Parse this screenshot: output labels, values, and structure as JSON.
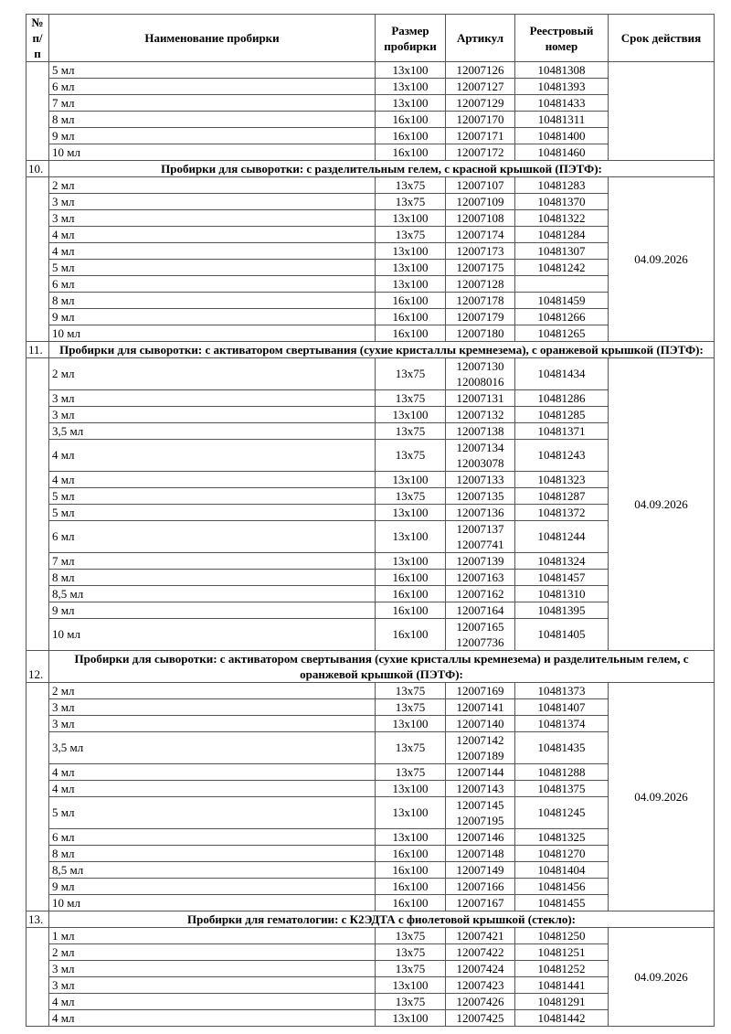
{
  "header": {
    "num": "№ п/п",
    "name": "Наименование пробирки",
    "size": "Размер пробирки",
    "article": "Артикул",
    "registry": "Реестровый номер",
    "expiry": "Срок действия"
  },
  "sections": [
    {
      "num": "",
      "title": "",
      "expiry": "",
      "rows": [
        {
          "name": "5 мл",
          "size": "13x100",
          "articles": [
            "12007126"
          ],
          "reg": "10481308"
        },
        {
          "name": "6 мл",
          "size": "13x100",
          "articles": [
            "12007127"
          ],
          "reg": "10481393"
        },
        {
          "name": "7 мл",
          "size": "13x100",
          "articles": [
            "12007129"
          ],
          "reg": "10481433"
        },
        {
          "name": "8 мл",
          "size": "16x100",
          "articles": [
            "12007170"
          ],
          "reg": "10481311"
        },
        {
          "name": "9 мл",
          "size": "16x100",
          "articles": [
            "12007171"
          ],
          "reg": "10481400"
        },
        {
          "name": "10 мл",
          "size": "16x100",
          "articles": [
            "12007172"
          ],
          "reg": "10481460"
        }
      ]
    },
    {
      "num": "10.",
      "title": "Пробирки для сыворотки: с разделительным гелем, с красной крышкой (ПЭТФ):",
      "expiry": "04.09.2026",
      "rows": [
        {
          "name": "2 мл",
          "size": "13x75",
          "articles": [
            "12007107"
          ],
          "reg": "10481283"
        },
        {
          "name": "3 мл",
          "size": "13x75",
          "articles": [
            "12007109"
          ],
          "reg": "10481370"
        },
        {
          "name": "3 мл",
          "size": "13x100",
          "articles": [
            "12007108"
          ],
          "reg": "10481322"
        },
        {
          "name": "4 мл",
          "size": "13x75",
          "articles": [
            "12007174"
          ],
          "reg": "10481284"
        },
        {
          "name": "4 мл",
          "size": "13x100",
          "articles": [
            "12007173"
          ],
          "reg": "10481307"
        },
        {
          "name": "5 мл",
          "size": "13x100",
          "articles": [
            "12007175"
          ],
          "reg": "10481242"
        },
        {
          "name": "6 мл",
          "size": "13x100",
          "articles": [
            "12007128"
          ],
          "reg": ""
        },
        {
          "name": "8 мл",
          "size": "16x100",
          "articles": [
            "12007178"
          ],
          "reg": "10481459"
        },
        {
          "name": "9 мл",
          "size": "16x100",
          "articles": [
            "12007179"
          ],
          "reg": "10481266"
        },
        {
          "name": "10 мл",
          "size": "16x100",
          "articles": [
            "12007180"
          ],
          "reg": "10481265"
        }
      ]
    },
    {
      "num": "11.",
      "title": "Пробирки для сыворотки: с активатором свертывания (сухие кристаллы кремнезема), с оранжевой крышкой (ПЭТФ):",
      "expiry": "04.09.2026",
      "rows": [
        {
          "name": "2 мл",
          "size": "13x75",
          "articles": [
            "12007130",
            "12008016"
          ],
          "reg": "10481434"
        },
        {
          "name": "3 мл",
          "size": "13x75",
          "articles": [
            "12007131"
          ],
          "reg": "10481286"
        },
        {
          "name": "3 мл",
          "size": "13x100",
          "articles": [
            "12007132"
          ],
          "reg": "10481285"
        },
        {
          "name": "3,5 мл",
          "size": "13x75",
          "articles": [
            "12007138"
          ],
          "reg": "10481371"
        },
        {
          "name": "4 мл",
          "size": "13x75",
          "articles": [
            "12007134",
            "12003078"
          ],
          "reg": "10481243"
        },
        {
          "name": "4 мл",
          "size": "13x100",
          "articles": [
            "12007133"
          ],
          "reg": "10481323"
        },
        {
          "name": "5 мл",
          "size": "13x75",
          "articles": [
            "12007135"
          ],
          "reg": "10481287"
        },
        {
          "name": "5 мл",
          "size": "13x100",
          "articles": [
            "12007136"
          ],
          "reg": "10481372"
        },
        {
          "name": "6 мл",
          "size": "13x100",
          "articles": [
            "12007137",
            "12007741"
          ],
          "reg": "10481244"
        },
        {
          "name": "7 мл",
          "size": "13x100",
          "articles": [
            "12007139"
          ],
          "reg": "10481324"
        },
        {
          "name": "8 мл",
          "size": "16x100",
          "articles": [
            "12007163"
          ],
          "reg": "10481457"
        },
        {
          "name": "8,5 мл",
          "size": "16x100",
          "articles": [
            "12007162"
          ],
          "reg": "10481310"
        },
        {
          "name": "9 мл",
          "size": "16x100",
          "articles": [
            "12007164"
          ],
          "reg": "10481395"
        },
        {
          "name": "10 мл",
          "size": "16x100",
          "articles": [
            "12007165",
            "12007736"
          ],
          "reg": "10481405"
        }
      ]
    },
    {
      "num": "12.",
      "title": "Пробирки для сыворотки: с активатором свертывания (сухие кристаллы кремнезема) и разделительным гелем, с оранжевой крышкой (ПЭТФ):",
      "expiry": "04.09.2026",
      "rows": [
        {
          "name": "2 мл",
          "size": "13x75",
          "articles": [
            "12007169"
          ],
          "reg": "10481373"
        },
        {
          "name": "3 мл",
          "size": "13x75",
          "articles": [
            "12007141"
          ],
          "reg": "10481407"
        },
        {
          "name": "3 мл",
          "size": "13x100",
          "articles": [
            "12007140"
          ],
          "reg": "10481374"
        },
        {
          "name": "3,5 мл",
          "size": "13x75",
          "articles": [
            "12007142",
            "12007189"
          ],
          "reg": "10481435"
        },
        {
          "name": "4 мл",
          "size": "13x75",
          "articles": [
            "12007144"
          ],
          "reg": "10481288"
        },
        {
          "name": "4 мл",
          "size": "13x100",
          "articles": [
            "12007143"
          ],
          "reg": "10481375"
        },
        {
          "name": "5 мл",
          "size": "13x100",
          "articles": [
            "12007145",
            "12007195"
          ],
          "reg": "10481245"
        },
        {
          "name": "6 мл",
          "size": "13x100",
          "articles": [
            "12007146"
          ],
          "reg": "10481325"
        },
        {
          "name": "8 мл",
          "size": "16x100",
          "articles": [
            "12007148"
          ],
          "reg": "10481270"
        },
        {
          "name": "8,5 мл",
          "size": "16x100",
          "articles": [
            "12007149"
          ],
          "reg": "10481404"
        },
        {
          "name": "9 мл",
          "size": "16x100",
          "articles": [
            "12007166"
          ],
          "reg": "10481456"
        },
        {
          "name": "10 мл",
          "size": "16x100",
          "articles": [
            "12007167"
          ],
          "reg": "10481455"
        }
      ]
    },
    {
      "num": "13.",
      "title": "Пробирки для гематологии: с К2ЭДТА с фиолетовой крышкой (стекло):",
      "expiry": "04.09.2026",
      "rows": [
        {
          "name": "1 мл",
          "size": "13x75",
          "articles": [
            "12007421"
          ],
          "reg": "10481250"
        },
        {
          "name": "2 мл",
          "size": "13x75",
          "articles": [
            "12007422"
          ],
          "reg": "10481251"
        },
        {
          "name": "3 мл",
          "size": "13x75",
          "articles": [
            "12007424"
          ],
          "reg": "10481252"
        },
        {
          "name": "3 мл",
          "size": "13x100",
          "articles": [
            "12007423"
          ],
          "reg": "10481441"
        },
        {
          "name": "4 мл",
          "size": "13x75",
          "articles": [
            "12007426"
          ],
          "reg": "10481291"
        },
        {
          "name": "4 мл",
          "size": "13x100",
          "articles": [
            "12007425"
          ],
          "reg": "10481442"
        }
      ]
    }
  ]
}
